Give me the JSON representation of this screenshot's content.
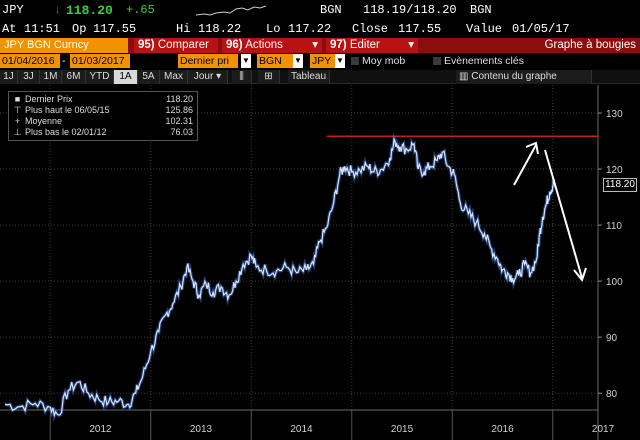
{
  "ticker": {
    "symbol": "JPY",
    "arrow": "↓",
    "price": "118.20",
    "change": "+.65",
    "bgn_label": "BGN",
    "bid_ask": "118.19/118.20",
    "bgn_label2": "BGN",
    "at_label": "At",
    "time": "11:51",
    "op_label": "Op",
    "open": "117.55",
    "hi_label": "Hi",
    "high": "118.22",
    "lo_label": "Lo",
    "low": "117.22",
    "close_label": "Close",
    "close": "117.55",
    "value_label": "Value",
    "value_date": "01/05/17"
  },
  "menubar": {
    "title": "JPY BGN Curncy",
    "compare": {
      "num": "95)",
      "label": "Comparer"
    },
    "actions": {
      "num": "96)",
      "label": "Actions"
    },
    "edit": {
      "num": "97)",
      "label": "Editer"
    },
    "chart_type": "Graphe à bougies"
  },
  "fields": {
    "start_date": "01/04/2016",
    "end_date": "01/03/2017",
    "price_type": "Dernier pri",
    "source": "BGN",
    "currency": "JPY",
    "moving_avg": "Moy mob",
    "key_events": "Evènements clés",
    "chart_content": "Contenu du graphe"
  },
  "periods": [
    "1J",
    "3J",
    "1M",
    "6M",
    "YTD",
    "1A",
    "5A",
    "Max"
  ],
  "active_period": "1A",
  "frequency": "Jour",
  "table_button": "Tableau",
  "legend": {
    "last": {
      "label": "Dernier Prix",
      "value": "118.20"
    },
    "high": {
      "label": "Plus haut le 06/05/15",
      "value": "125.86"
    },
    "avg": {
      "label": "Moyenne",
      "value": "102.31"
    },
    "low": {
      "label": "Plus bas le 02/01/12",
      "value": "76.03"
    }
  },
  "last_price_badge": "118.20",
  "colors": {
    "line": "#d6e6ff",
    "accent_orange": "#f39200",
    "menu_red": "#b81212",
    "resistance": "#c81e1e",
    "down_arrow": "#e33333",
    "up_change": "#3ecb3e"
  },
  "chart_data": {
    "type": "line",
    "x_tick_labels": [
      "2012",
      "2013",
      "2014",
      "2015",
      "2016",
      "2017"
    ],
    "y_ticks": [
      80,
      90,
      100,
      110,
      120,
      130
    ],
    "ylim": [
      77,
      135
    ],
    "xlim": [
      2011.5,
      2017.45
    ],
    "series": [
      {
        "points": [
          [
            2011.55,
            78.0
          ],
          [
            2011.7,
            77.6
          ],
          [
            2011.85,
            78.2
          ],
          [
            2012.0,
            77.5
          ],
          [
            2012.08,
            76.1
          ],
          [
            2012.18,
            80.5
          ],
          [
            2012.28,
            82.0
          ],
          [
            2012.38,
            80.0
          ],
          [
            2012.48,
            79.0
          ],
          [
            2012.58,
            78.4
          ],
          [
            2012.68,
            78.6
          ],
          [
            2012.78,
            78.0
          ],
          [
            2012.85,
            80.0
          ],
          [
            2012.92,
            83.0
          ],
          [
            2013.0,
            87.5
          ],
          [
            2013.08,
            91.0
          ],
          [
            2013.15,
            94.0
          ],
          [
            2013.22,
            96.0
          ],
          [
            2013.3,
            99.0
          ],
          [
            2013.36,
            102.5
          ],
          [
            2013.42,
            100.0
          ],
          [
            2013.48,
            97.5
          ],
          [
            2013.55,
            99.5
          ],
          [
            2013.62,
            98.0
          ],
          [
            2013.7,
            99.0
          ],
          [
            2013.78,
            97.5
          ],
          [
            2013.85,
            100.0
          ],
          [
            2013.92,
            103.0
          ],
          [
            2014.0,
            104.5
          ],
          [
            2014.05,
            102.5
          ],
          [
            2014.15,
            102.0
          ],
          [
            2014.25,
            101.8
          ],
          [
            2014.35,
            102.5
          ],
          [
            2014.45,
            101.5
          ],
          [
            2014.55,
            102.0
          ],
          [
            2014.62,
            103.0
          ],
          [
            2014.68,
            107.0
          ],
          [
            2014.75,
            109.5
          ],
          [
            2014.82,
            114.0
          ],
          [
            2014.88,
            119.0
          ],
          [
            2014.93,
            120.5
          ],
          [
            2015.0,
            119.5
          ],
          [
            2015.08,
            119.8
          ],
          [
            2015.16,
            120.5
          ],
          [
            2015.22,
            119.5
          ],
          [
            2015.3,
            120.0
          ],
          [
            2015.38,
            122.0
          ],
          [
            2015.43,
            125.0
          ],
          [
            2015.48,
            124.0
          ],
          [
            2015.55,
            123.5
          ],
          [
            2015.62,
            124.5
          ],
          [
            2015.66,
            120.0
          ],
          [
            2015.72,
            119.5
          ],
          [
            2015.78,
            120.5
          ],
          [
            2015.85,
            121.5
          ],
          [
            2015.9,
            123.0
          ],
          [
            2015.96,
            120.5
          ],
          [
            2016.02,
            119.0
          ],
          [
            2016.08,
            114.0
          ],
          [
            2016.16,
            112.0
          ],
          [
            2016.24,
            110.5
          ],
          [
            2016.32,
            108.5
          ],
          [
            2016.38,
            106.0
          ],
          [
            2016.45,
            104.0
          ],
          [
            2016.5,
            102.0
          ],
          [
            2016.55,
            101.5
          ],
          [
            2016.6,
            100.5
          ],
          [
            2016.66,
            101.0
          ],
          [
            2016.72,
            103.0
          ],
          [
            2016.78,
            101.5
          ],
          [
            2016.84,
            104.0
          ],
          [
            2016.87,
            108.5
          ],
          [
            2016.9,
            111.5
          ],
          [
            2016.94,
            114.0
          ],
          [
            2016.97,
            116.0
          ],
          [
            2017.0,
            117.0
          ],
          [
            2017.01,
            118.2
          ]
        ]
      }
    ],
    "annotations": {
      "resistance_level": 125.86,
      "resistance_x_start": 2014.75,
      "resistance_x_end": 2017.45
    }
  }
}
